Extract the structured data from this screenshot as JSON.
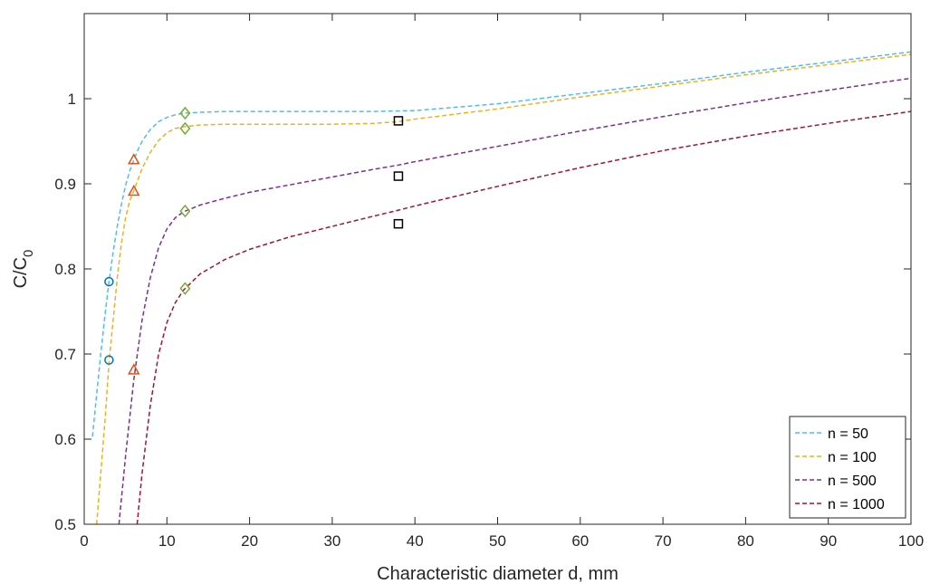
{
  "chart_data": {
    "type": "line",
    "title": "",
    "xlabel": "Characteristic diameter d, mm",
    "ylabel_main": "C/C",
    "ylabel_sub": "0",
    "xlim": [
      0,
      100
    ],
    "ylim": [
      0.5,
      1.1
    ],
    "xticks": [
      0,
      10,
      20,
      30,
      40,
      50,
      60,
      70,
      80,
      90,
      100
    ],
    "yticks": [
      0.5,
      0.6,
      0.7,
      0.8,
      0.9,
      1
    ],
    "grid": false,
    "legend_position": "bottom-right",
    "series": [
      {
        "name": "n = 50",
        "color": "#4DBEEE",
        "style": "dashed",
        "x": [
          1.0,
          1.5,
          2,
          2.5,
          3,
          3.5,
          4,
          4.5,
          5,
          5.5,
          6,
          6.5,
          7,
          8,
          9,
          10,
          11,
          12,
          14,
          17,
          20,
          25,
          30,
          35,
          40,
          50,
          60,
          70,
          80,
          90,
          100
        ],
        "y": [
          0.603,
          0.652,
          0.7,
          0.745,
          0.785,
          0.82,
          0.85,
          0.876,
          0.898,
          0.915,
          0.928,
          0.94,
          0.95,
          0.964,
          0.973,
          0.978,
          0.981,
          0.983,
          0.984,
          0.985,
          0.985,
          0.985,
          0.985,
          0.985,
          0.986,
          0.994,
          1.006,
          1.018,
          1.031,
          1.043,
          1.055
        ]
      },
      {
        "name": "n = 100",
        "color": "#EDB120",
        "style": "dashed",
        "x": [
          1.5,
          2,
          2.5,
          3,
          3.5,
          4,
          4.5,
          5,
          5.5,
          6,
          6.5,
          7,
          8,
          9,
          10,
          11,
          12,
          14,
          17,
          20,
          25,
          30,
          35,
          38,
          40,
          50,
          60,
          70,
          80,
          90,
          100
        ],
        "y": [
          0.5,
          0.56,
          0.62,
          0.69,
          0.74,
          0.79,
          0.83,
          0.86,
          0.88,
          0.892,
          0.905,
          0.918,
          0.937,
          0.951,
          0.96,
          0.965,
          0.967,
          0.969,
          0.97,
          0.97,
          0.97,
          0.97,
          0.971,
          0.973,
          0.976,
          0.988,
          1.002,
          1.015,
          1.028,
          1.04,
          1.052
        ]
      },
      {
        "name": "n = 500",
        "color": "#7E2F8E",
        "style": "dashed",
        "x": [
          4.2,
          5,
          6,
          7,
          8,
          9,
          10,
          11,
          12,
          14,
          17,
          20,
          25,
          30,
          35,
          38,
          40,
          50,
          60,
          70,
          80,
          90,
          100
        ],
        "y": [
          0.5,
          0.58,
          0.67,
          0.74,
          0.79,
          0.825,
          0.847,
          0.86,
          0.867,
          0.875,
          0.883,
          0.89,
          0.899,
          0.908,
          0.917,
          0.922,
          0.926,
          0.944,
          0.962,
          0.979,
          0.995,
          1.01,
          1.024
        ]
      },
      {
        "name": "n = 1000",
        "color": "#A2142F",
        "style": "dashed",
        "x": [
          6.4,
          7,
          8,
          9,
          10,
          11,
          12,
          14,
          17,
          20,
          25,
          30,
          35,
          38,
          40,
          50,
          60,
          70,
          80,
          90,
          100
        ],
        "y": [
          0.5,
          0.56,
          0.64,
          0.7,
          0.737,
          0.76,
          0.775,
          0.794,
          0.811,
          0.823,
          0.838,
          0.85,
          0.862,
          0.869,
          0.874,
          0.897,
          0.919,
          0.939,
          0.956,
          0.971,
          0.985
        ]
      }
    ],
    "markers": [
      {
        "shape": "circle",
        "color": "#0072BD",
        "x": [
          3,
          3
        ],
        "y": [
          0.785,
          0.693
        ]
      },
      {
        "shape": "triangle",
        "color": "#D95319",
        "x": [
          6,
          6,
          6
        ],
        "y": [
          0.928,
          0.891,
          0.681
        ]
      },
      {
        "shape": "diamond",
        "color": "#77AC30",
        "x": [
          12.2,
          12.2,
          12.2,
          12.2
        ],
        "y": [
          0.983,
          0.965,
          0.868,
          0.777
        ]
      },
      {
        "shape": "square",
        "color": "#000000",
        "x": [
          38,
          38,
          38
        ],
        "y": [
          0.974,
          0.909,
          0.853
        ]
      }
    ]
  }
}
